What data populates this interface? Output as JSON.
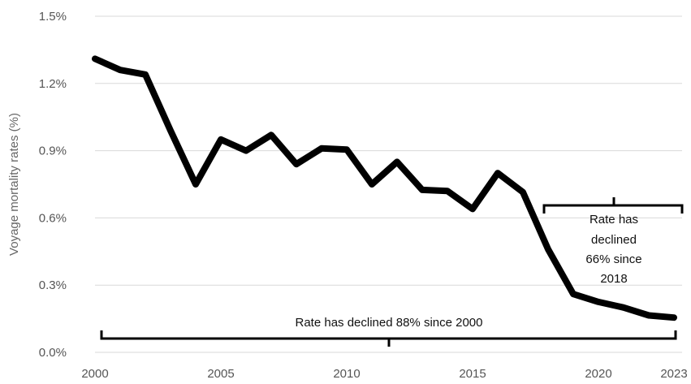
{
  "chart_data": {
    "type": "line",
    "title": "",
    "xlabel": "",
    "ylabel": "Voyage mortality rates (%)",
    "xlim": [
      2000,
      2023
    ],
    "ylim": [
      0,
      1.5
    ],
    "grid": true,
    "x_ticks": [
      2000,
      2005,
      2010,
      2015,
      2020,
      2023
    ],
    "x_tick_labels": [
      "2000",
      "2005",
      "2010",
      "2015",
      "2020",
      "2023"
    ],
    "y_ticks": [
      0,
      0.3,
      0.6,
      0.9,
      1.2,
      1.5
    ],
    "y_tick_labels": [
      "0.0%",
      "0.3%",
      "0.6%",
      "0.9%",
      "1.2%",
      "1.5%"
    ],
    "x": [
      2000,
      2001,
      2002,
      2003,
      2004,
      2005,
      2006,
      2007,
      2008,
      2009,
      2010,
      2011,
      2012,
      2013,
      2014,
      2015,
      2016,
      2017,
      2018,
      2019,
      2020,
      2021,
      2022,
      2023
    ],
    "series": [
      {
        "values": [
          1.31,
          1.26,
          1.24,
          0.99,
          0.75,
          0.95,
          0.9,
          0.97,
          0.84,
          0.91,
          0.905,
          0.75,
          0.85,
          0.725,
          0.72,
          0.64,
          0.8,
          0.715,
          0.46,
          0.26,
          0.225,
          0.2,
          0.165,
          0.155
        ],
        "color": "#000000"
      }
    ],
    "annotations": [
      {
        "text": "Rate has declined 88% since 2000",
        "x_start": 2000,
        "x_end": 2023,
        "y": 0.15
      },
      {
        "lines": [
          "Rate has",
          "declined",
          "66% since",
          "2018"
        ],
        "x_start": 2018,
        "x_end": 2023,
        "y": 0.67
      }
    ]
  }
}
